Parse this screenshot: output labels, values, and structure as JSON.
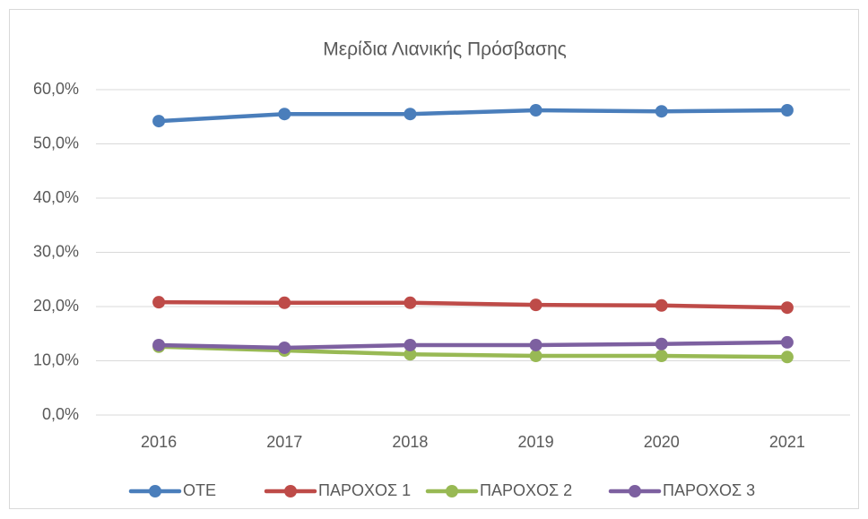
{
  "chart_data": {
    "type": "line",
    "title": "Μερίδια Λιανικής Πρόσβασης",
    "categories": [
      "2016",
      "2017",
      "2018",
      "2019",
      "2020",
      "2021"
    ],
    "series": [
      {
        "name": "ΟΤΕ",
        "color": "#4a7ebb",
        "values": [
          54.2,
          55.5,
          55.5,
          56.2,
          56.0,
          56.2
        ]
      },
      {
        "name": "ΠΑΡΟΧΟΣ 1",
        "color": "#be4b48",
        "values": [
          20.8,
          20.7,
          20.7,
          20.3,
          20.2,
          19.8
        ]
      },
      {
        "name": "ΠΑΡΟΧΟΣ 2",
        "color": "#98b954",
        "values": [
          12.6,
          11.9,
          11.2,
          10.9,
          10.9,
          10.7
        ]
      },
      {
        "name": "ΠΑΡΟΧΟΣ 3",
        "color": "#7d60a0",
        "values": [
          12.9,
          12.4,
          12.9,
          12.9,
          13.1,
          13.4
        ]
      }
    ],
    "ylim": [
      0,
      60
    ],
    "yticks": [
      {
        "value": 0,
        "label": "0,0%"
      },
      {
        "value": 10,
        "label": "10,0%"
      },
      {
        "value": 20,
        "label": "20,0%"
      },
      {
        "value": 30,
        "label": "30,0%"
      },
      {
        "value": 40,
        "label": "40,0%"
      },
      {
        "value": 50,
        "label": "50,0%"
      },
      {
        "value": 60,
        "label": "60,0%"
      }
    ],
    "grid": true,
    "legend": "bottom"
  }
}
